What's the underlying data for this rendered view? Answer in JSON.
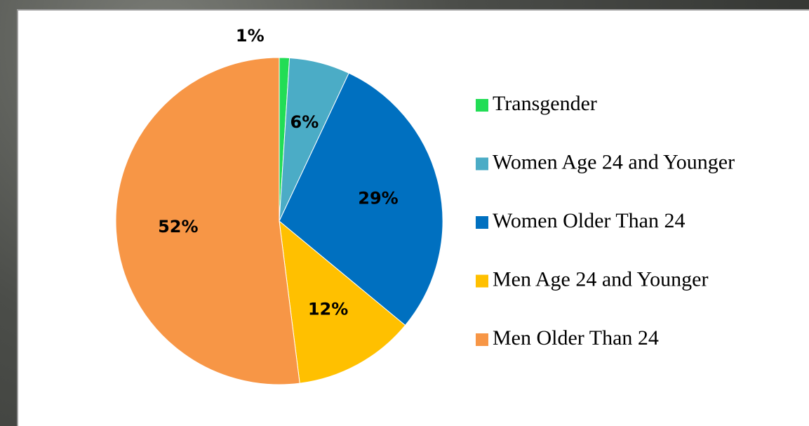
{
  "chart_data": {
    "type": "pie",
    "categories": [
      "Transgender",
      "Women Age 24 and Younger",
      "Women Older Than 24",
      "Men Age 24 and Younger",
      "Men Older Than 24"
    ],
    "values": [
      1,
      6,
      29,
      12,
      52
    ],
    "value_labels": [
      "1%",
      "6%",
      "29%",
      "12%",
      "52%"
    ],
    "colors": [
      "#22dd55",
      "#4bacc6",
      "#0070c0",
      "#ffc000",
      "#f79646"
    ],
    "legend": "right"
  }
}
